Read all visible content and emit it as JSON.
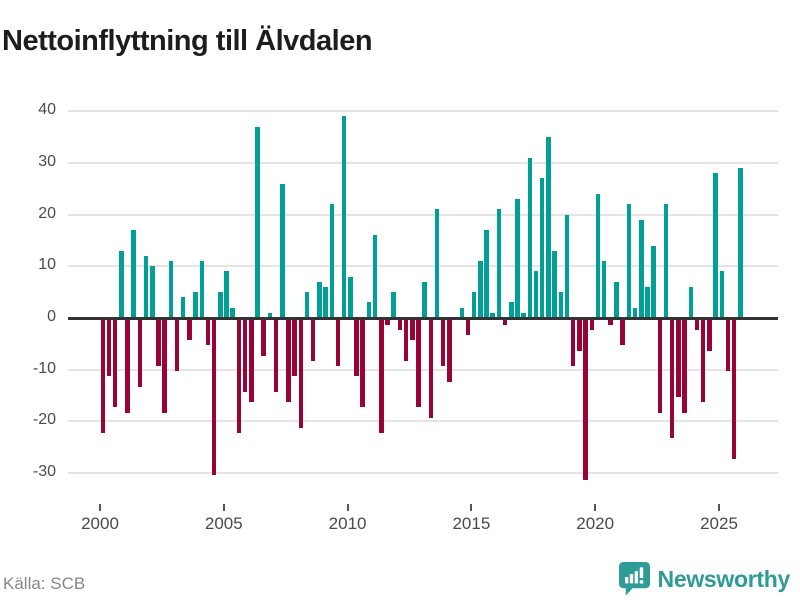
{
  "chart_data": {
    "type": "bar",
    "title": "Nettoinflyttning till Älvdalen",
    "xlabel": "",
    "ylabel": "",
    "ylim": [
      -35,
      43
    ],
    "grid": true,
    "legend": "none",
    "frequency": "quarterly",
    "positive_color": "#00a096",
    "negative_color": "#990335",
    "yticks": [
      40,
      30,
      20,
      10,
      0,
      -10,
      -20,
      -30
    ],
    "ytick_labels": [
      "40",
      "30",
      "20",
      "10",
      "0",
      "-10",
      "-20",
      "-30"
    ],
    "xtick_labels": [
      "2000",
      "2005",
      "2010",
      "2015",
      "2020",
      "2025"
    ],
    "series": [
      {
        "year": 2000,
        "values": [
          -22,
          -11,
          -17,
          13
        ]
      },
      {
        "year": 2001,
        "values": [
          -18,
          17,
          -13,
          12
        ]
      },
      {
        "year": 2002,
        "values": [
          10,
          -9,
          -18,
          11
        ]
      },
      {
        "year": 2003,
        "values": [
          -10,
          4,
          -4,
          5
        ]
      },
      {
        "year": 2004,
        "values": [
          11,
          -5,
          -30,
          5
        ]
      },
      {
        "year": 2005,
        "values": [
          9,
          2,
          -22,
          -14
        ]
      },
      {
        "year": 2006,
        "values": [
          -16,
          37,
          -7,
          1
        ]
      },
      {
        "year": 2007,
        "values": [
          -14,
          26,
          -16,
          -11
        ]
      },
      {
        "year": 2008,
        "values": [
          -21,
          5,
          -8,
          7
        ]
      },
      {
        "year": 2009,
        "values": [
          6,
          22,
          -9,
          39
        ]
      },
      {
        "year": 2010,
        "values": [
          8,
          -11,
          -17,
          3
        ]
      },
      {
        "year": 2011,
        "values": [
          16,
          -22,
          -1,
          5
        ]
      },
      {
        "year": 2012,
        "values": [
          -2,
          -8,
          -4,
          -17
        ]
      },
      {
        "year": 2013,
        "values": [
          7,
          -19,
          21,
          -9
        ]
      },
      {
        "year": 2014,
        "values": [
          -12,
          0,
          2,
          -3
        ]
      },
      {
        "year": 2015,
        "values": [
          5,
          11,
          17,
          1
        ]
      },
      {
        "year": 2016,
        "values": [
          21,
          -1,
          3,
          23
        ]
      },
      {
        "year": 2017,
        "values": [
          1,
          31,
          9,
          27
        ]
      },
      {
        "year": 2018,
        "values": [
          35,
          13,
          5,
          20
        ]
      },
      {
        "year": 2019,
        "values": [
          -9,
          -6,
          -31,
          -2
        ]
      },
      {
        "year": 2020,
        "values": [
          24,
          11,
          -1,
          7
        ]
      },
      {
        "year": 2021,
        "values": [
          -5,
          22,
          2,
          19
        ]
      },
      {
        "year": 2022,
        "values": [
          6,
          14,
          -18,
          22
        ]
      },
      {
        "year": 2023,
        "values": [
          -23,
          -15,
          -18,
          6
        ]
      },
      {
        "year": 2024,
        "values": [
          -2,
          -16,
          -6,
          28
        ]
      },
      {
        "year": 2025,
        "values": [
          9,
          -10,
          -27,
          29
        ]
      }
    ]
  },
  "footer": {
    "source": "Källa: SCB",
    "brand_name": "Newsworthy",
    "brand_icon": "bar-chart-speech-bubble-icon",
    "brand_color": "#2e9b96"
  }
}
